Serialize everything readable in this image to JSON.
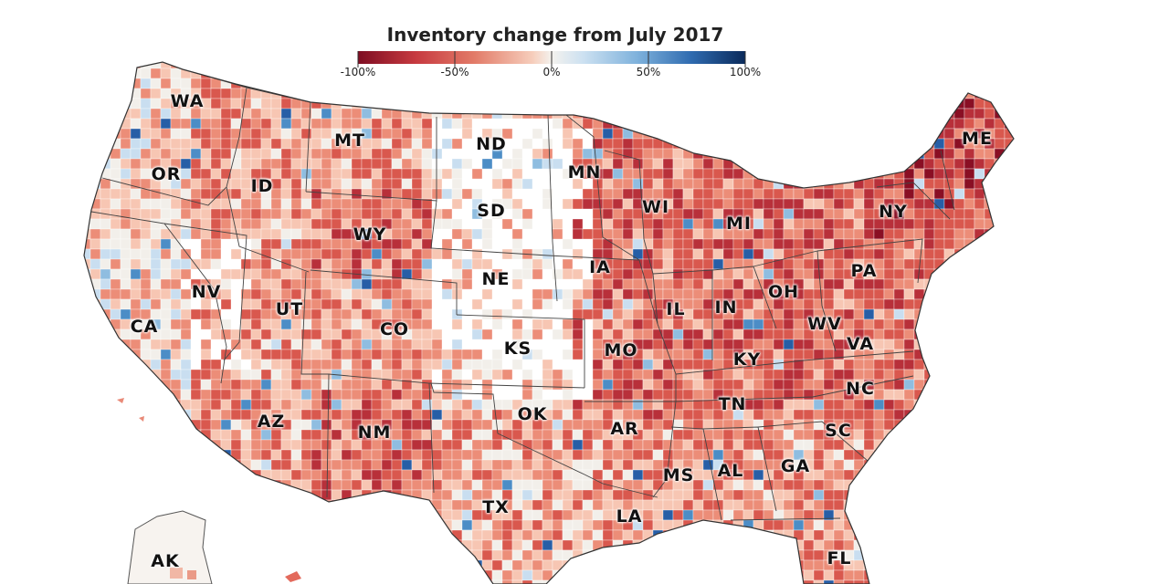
{
  "legend": {
    "title": "Inventory change from July 2017",
    "ticks": [
      "-100%",
      "-50%",
      "0%",
      "50%",
      "100%"
    ],
    "colors": [
      "#8a0f24",
      "#b8303a",
      "#d9584e",
      "#ec8d78",
      "#f7c6b3",
      "#f2efea",
      "#c9def0",
      "#8fbde0",
      "#4c8dc6",
      "#275ea6",
      "#0b2f62"
    ]
  },
  "states": [
    {
      "code": "WA"
    },
    {
      "code": "OR"
    },
    {
      "code": "ID"
    },
    {
      "code": "MT"
    },
    {
      "code": "ND"
    },
    {
      "code": "MN"
    },
    {
      "code": "WI"
    },
    {
      "code": "MI"
    },
    {
      "code": "NY"
    },
    {
      "code": "ME"
    },
    {
      "code": "SD"
    },
    {
      "code": "WY"
    },
    {
      "code": "NV"
    },
    {
      "code": "UT"
    },
    {
      "code": "CA"
    },
    {
      "code": "CO"
    },
    {
      "code": "NE"
    },
    {
      "code": "IA"
    },
    {
      "code": "IL"
    },
    {
      "code": "IN"
    },
    {
      "code": "OH"
    },
    {
      "code": "PA"
    },
    {
      "code": "WV"
    },
    {
      "code": "VA"
    },
    {
      "code": "KS"
    },
    {
      "code": "MO"
    },
    {
      "code": "KY"
    },
    {
      "code": "NC"
    },
    {
      "code": "TN"
    },
    {
      "code": "AZ"
    },
    {
      "code": "NM"
    },
    {
      "code": "OK"
    },
    {
      "code": "AR"
    },
    {
      "code": "SC"
    },
    {
      "code": "MS"
    },
    {
      "code": "AL"
    },
    {
      "code": "GA"
    },
    {
      "code": "TX"
    },
    {
      "code": "LA"
    },
    {
      "code": "AK"
    },
    {
      "code": "FL"
    }
  ]
}
